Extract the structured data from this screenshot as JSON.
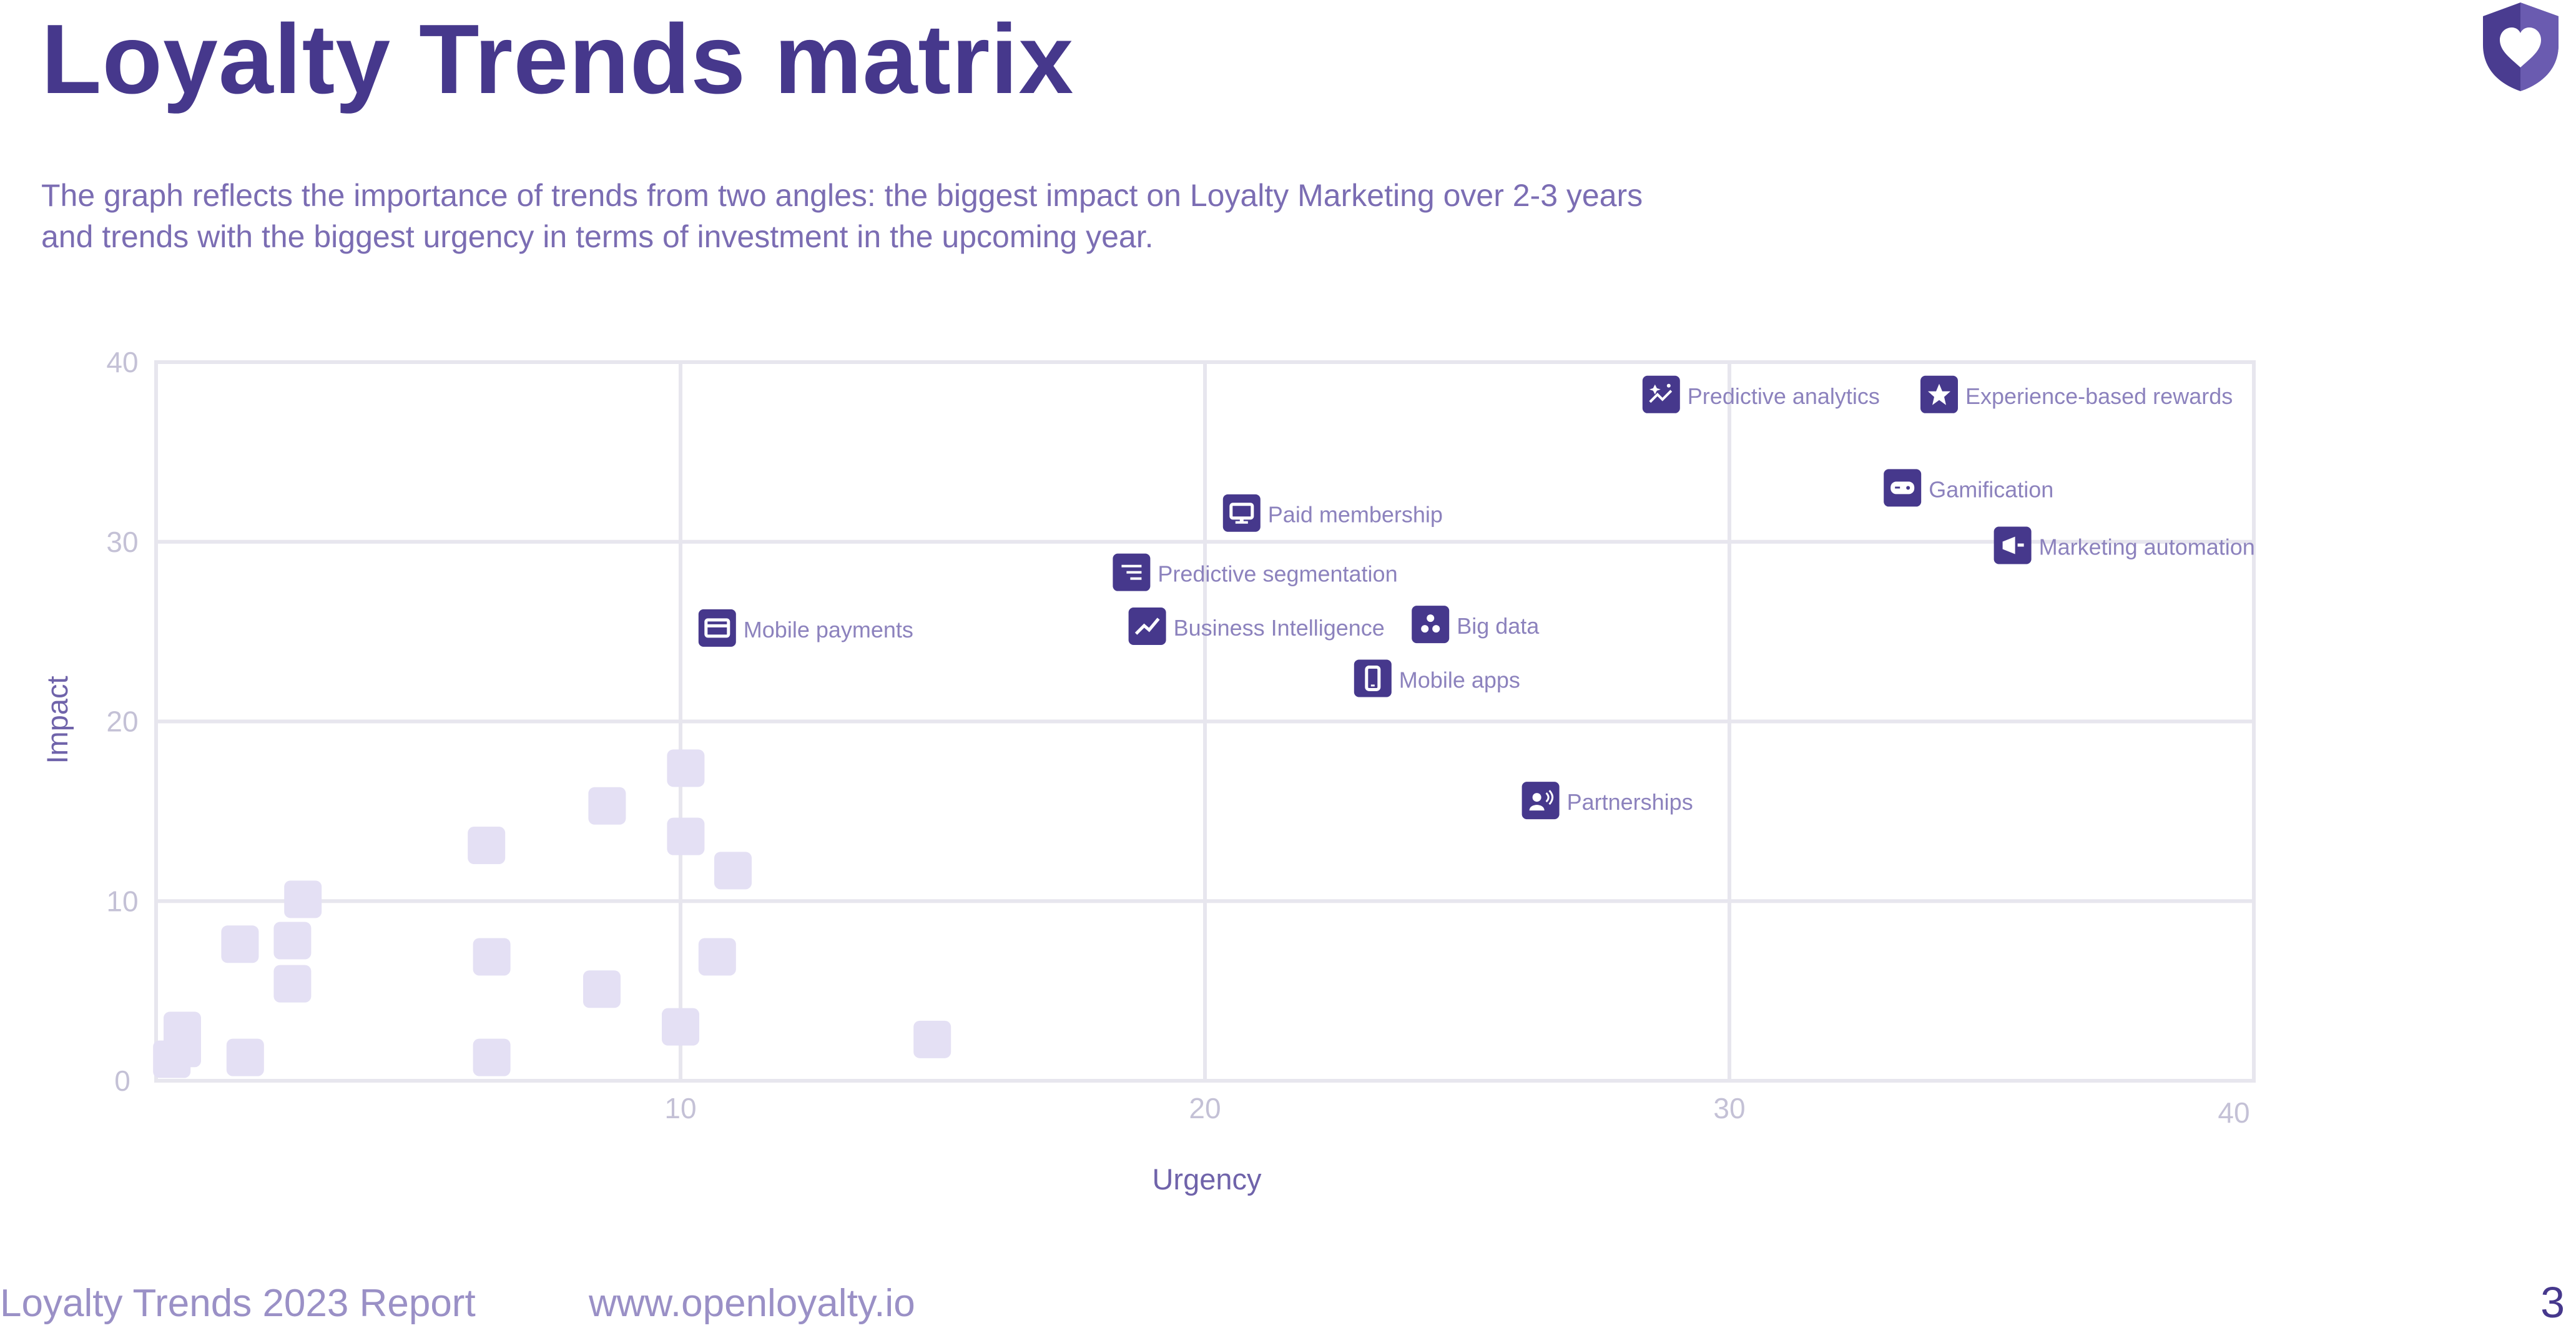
{
  "page": {
    "title": "Loyalty Trends matrix",
    "subtitle": "The graph reflects the importance of trends from two angles: the biggest impact on Loyalty Marketing over 2-3 years and trends with the biggest urgency in terms of investment in the upcoming year.",
    "footer_report": "Loyalty Trends 2023 Report",
    "footer_url": "www.openloyalty.io",
    "page_number": "3"
  },
  "colors": {
    "title": "#46388c",
    "accent": "#46388c",
    "muted_square": "#e4e0f4",
    "grid": "#e7e6ee",
    "tick": "#c4c1d6",
    "label": "#8c82bd",
    "axis_title": "#6f63aa"
  },
  "chart_data": {
    "type": "scatter",
    "title": "",
    "xlabel": "Urgency",
    "ylabel": "Impact",
    "xlim": [
      0,
      40
    ],
    "ylim": [
      0,
      40
    ],
    "x_ticks": [
      "10",
      "20",
      "30",
      "40"
    ],
    "y_ticks": [
      "0",
      "10",
      "20",
      "30",
      "40"
    ],
    "grid": true,
    "labeled_points": [
      {
        "label": "Predictive analytics",
        "x": 28.7,
        "y": 38.2,
        "icon": "chart-sparkle-icon"
      },
      {
        "label": "Experience-based rewards",
        "x": 34.0,
        "y": 38.2,
        "icon": "star-icon"
      },
      {
        "label": "Gamification",
        "x": 33.3,
        "y": 33.0,
        "icon": "gamepad-icon"
      },
      {
        "label": "Marketing automation",
        "x": 35.4,
        "y": 29.8,
        "icon": "megaphone-icon"
      },
      {
        "label": "Paid membership",
        "x": 20.7,
        "y": 31.6,
        "icon": "monitor-icon"
      },
      {
        "label": "Predictive segmentation",
        "x": 18.6,
        "y": 28.3,
        "icon": "list-icon"
      },
      {
        "label": "Business Intelligence",
        "x": 18.9,
        "y": 25.3,
        "icon": "trend-line-icon"
      },
      {
        "label": "Big data",
        "x": 24.3,
        "y": 25.4,
        "icon": "dots-icon"
      },
      {
        "label": "Mobile apps",
        "x": 23.2,
        "y": 22.4,
        "icon": "phone-icon"
      },
      {
        "label": "Mobile payments",
        "x": 10.7,
        "y": 25.2,
        "icon": "card-icon"
      },
      {
        "label": "Partnerships",
        "x": 26.4,
        "y": 15.6,
        "icon": "user-voice-icon"
      }
    ],
    "unlabeled_points": [
      {
        "x": 0.3,
        "y": 1.2
      },
      {
        "x": 0.5,
        "y": 2.8
      },
      {
        "x": 0.5,
        "y": 1.8
      },
      {
        "x": 1.7,
        "y": 1.3
      },
      {
        "x": 1.6,
        "y": 7.6
      },
      {
        "x": 2.6,
        "y": 7.8
      },
      {
        "x": 2.6,
        "y": 5.4
      },
      {
        "x": 2.8,
        "y": 10.1
      },
      {
        "x": 6.3,
        "y": 13.1
      },
      {
        "x": 6.4,
        "y": 6.9
      },
      {
        "x": 6.4,
        "y": 1.3
      },
      {
        "x": 8.6,
        "y": 15.3
      },
      {
        "x": 8.5,
        "y": 5.1
      },
      {
        "x": 10.1,
        "y": 17.4
      },
      {
        "x": 10.1,
        "y": 13.6
      },
      {
        "x": 11.0,
        "y": 11.7
      },
      {
        "x": 10.7,
        "y": 6.9
      },
      {
        "x": 10.0,
        "y": 3.0
      },
      {
        "x": 14.8,
        "y": 2.3
      }
    ]
  }
}
